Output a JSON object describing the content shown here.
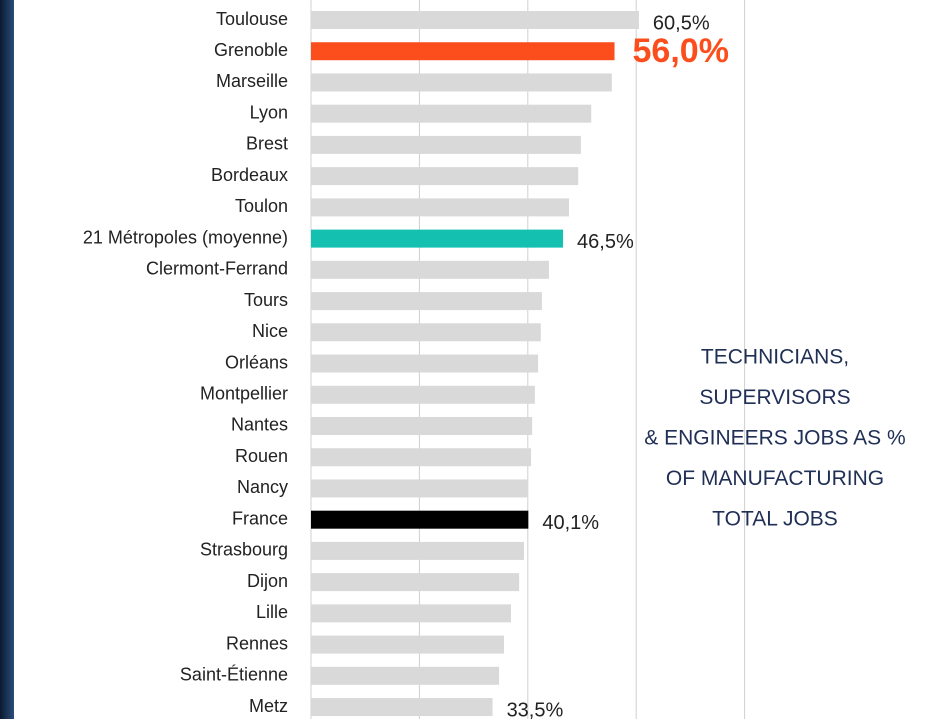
{
  "chart_data": {
    "type": "barh",
    "categories": [
      "Toulouse",
      "Grenoble",
      "Marseille",
      "Lyon",
      "Brest",
      "Bordeaux",
      "Toulon",
      "21 Métropoles (moyenne)",
      "Clermont-Ferrand",
      "Tours",
      "Nice",
      "Orléans",
      "Montpellier",
      "Nantes",
      "Rouen",
      "Nancy",
      "France",
      "Strasbourg",
      "Dijon",
      "Lille",
      "Rennes",
      "Saint-Étienne",
      "Metz"
    ],
    "values": [
      60.5,
      56.0,
      55.5,
      51.7,
      49.8,
      49.3,
      47.6,
      46.5,
      43.9,
      42.6,
      42.4,
      41.9,
      41.3,
      40.8,
      40.6,
      39.9,
      40.1,
      39.3,
      38.4,
      36.9,
      35.6,
      34.7,
      33.5
    ],
    "value_labels": [
      "60,5%",
      "56,0%",
      null,
      null,
      null,
      null,
      null,
      "46,5%",
      null,
      null,
      null,
      null,
      null,
      null,
      null,
      null,
      "40,1%",
      null,
      null,
      null,
      null,
      null,
      "33,5%"
    ],
    "colors": [
      "#d9d9d9",
      "#fc4e1c",
      "#d9d9d9",
      "#d9d9d9",
      "#d9d9d9",
      "#d9d9d9",
      "#d9d9d9",
      "#14c1b0",
      "#d9d9d9",
      "#d9d9d9",
      "#d9d9d9",
      "#d9d9d9",
      "#d9d9d9",
      "#d9d9d9",
      "#d9d9d9",
      "#d9d9d9",
      "#000000",
      "#d9d9d9",
      "#d9d9d9",
      "#d9d9d9",
      "#d9d9d9",
      "#d9d9d9",
      "#d9d9d9"
    ],
    "xlim": [
      0,
      85
    ],
    "xticks": [
      0,
      20,
      40,
      60,
      80
    ],
    "grid": true,
    "annotation": [
      "TECHNICIANS,",
      "SUPERVISORS",
      "& ENGINEERS JOBS AS %",
      "OF MANUFACTURING",
      "TOTAL JOBS"
    ]
  }
}
